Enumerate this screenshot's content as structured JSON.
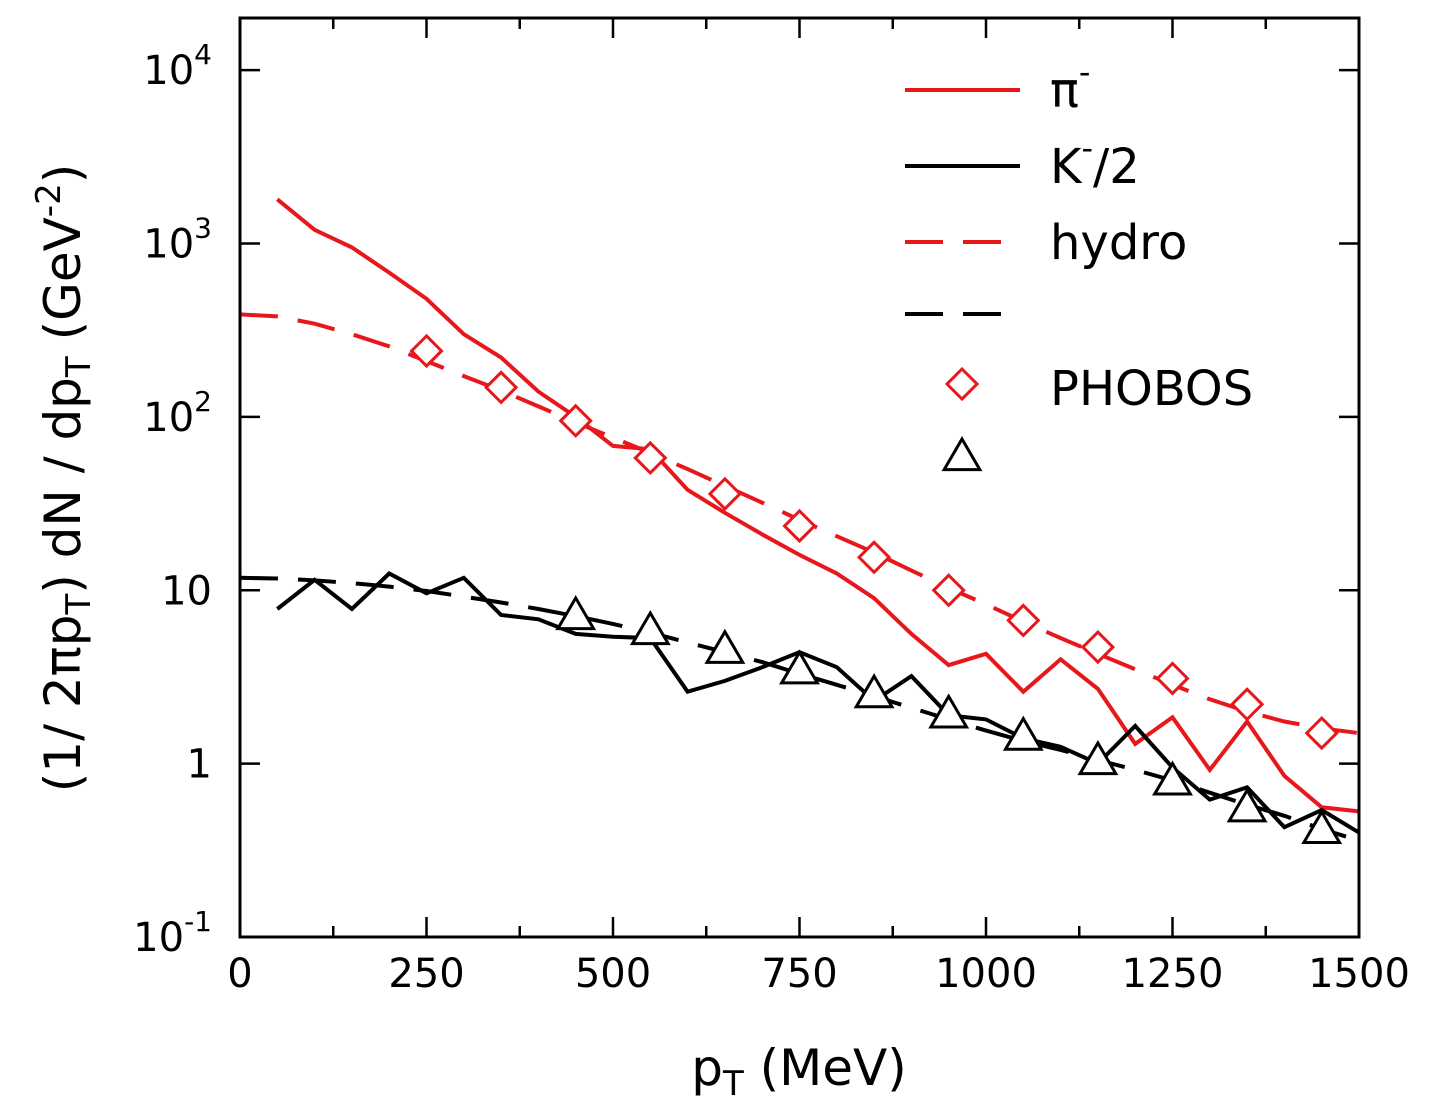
{
  "chart_data": {
    "type": "line",
    "title": "",
    "xlabel": "p_T (MeV)",
    "xlabel_main": "p",
    "xlabel_sub": "T",
    "xlabel_rest": " (MeV)",
    "ylabel": "(1/ 2πp_T) dN / dp_T (GeV^-2)",
    "ylabel_parts": {
      "p1": "(1/ 2πp",
      "s1": "T",
      "p2": ") dN / dp",
      "s2": "T",
      "p3": " (GeV",
      "sup": "-2",
      "p4": ")"
    },
    "xlim": [
      0,
      1500
    ],
    "ylim": [
      0.1,
      20000
    ],
    "yscale": "log",
    "xticks": [
      {
        "value": 0,
        "label": "0"
      },
      {
        "value": 250,
        "label": "250"
      },
      {
        "value": 500,
        "label": "500"
      },
      {
        "value": 750,
        "label": "750"
      },
      {
        "value": 1000,
        "label": "1000"
      },
      {
        "value": 1250,
        "label": "1250"
      },
      {
        "value": 1500,
        "label": "1500"
      }
    ],
    "xminor": [
      125,
      375,
      625,
      875,
      1125,
      1375
    ],
    "yticks": [
      {
        "value": 0.1,
        "base": "10",
        "exp": "-1"
      },
      {
        "value": 1,
        "base": "1",
        "exp": ""
      },
      {
        "value": 10,
        "base": "10",
        "exp": ""
      },
      {
        "value": 100,
        "base": "10",
        "exp": "2"
      },
      {
        "value": 1000,
        "base": "10",
        "exp": "3"
      },
      {
        "value": 10000,
        "base": "10",
        "exp": "4"
      }
    ],
    "legend": {
      "position": "top-right",
      "entries": [
        {
          "series": "pi-model",
          "main": "π",
          "sup": "-",
          "rest": ""
        },
        {
          "series": "k-model",
          "main": "K",
          "sup": "-",
          "rest": "/2"
        },
        {
          "series": "pi-hydro",
          "main": "hydro",
          "sup": "",
          "rest": ""
        },
        {
          "series": "k-hydro",
          "main": "",
          "sup": "",
          "rest": ""
        },
        {
          "series": "pi-phobos",
          "main": "PHOBOS",
          "sup": "",
          "rest": ""
        },
        {
          "series": "k-phobos",
          "main": "",
          "sup": "",
          "rest": ""
        }
      ]
    },
    "series": [
      {
        "id": "pi-model",
        "name": "π-",
        "style": "solid",
        "marker": "none",
        "color": "#e8171b",
        "x": [
          50,
          100,
          150,
          200,
          250,
          300,
          350,
          400,
          450,
          500,
          550,
          600,
          650,
          700,
          750,
          800,
          850,
          900,
          950,
          1000,
          1050,
          1100,
          1150,
          1200,
          1250,
          1300,
          1350,
          1400,
          1450,
          1500
        ],
        "y": [
          1800,
          1200,
          950,
          680,
          480,
          300,
          220,
          140,
          100,
          68,
          65,
          38,
          28,
          21,
          16,
          12.5,
          9,
          5.6,
          3.7,
          4.3,
          2.6,
          4.0,
          2.7,
          1.3,
          1.85,
          0.92,
          1.75,
          0.85,
          0.56,
          0.53
        ]
      },
      {
        "id": "k-model",
        "name": "K-/2",
        "style": "solid",
        "marker": "none",
        "color": "#000000",
        "x": [
          50,
          100,
          150,
          200,
          250,
          300,
          350,
          400,
          450,
          500,
          550,
          600,
          650,
          700,
          750,
          800,
          850,
          900,
          950,
          1000,
          1050,
          1100,
          1150,
          1200,
          1250,
          1300,
          1350,
          1400,
          1450,
          1500
        ],
        "y": [
          7.8,
          11.5,
          7.8,
          12.5,
          9.6,
          11.8,
          7.2,
          6.8,
          5.6,
          5.4,
          5.3,
          2.6,
          3.0,
          3.6,
          4.4,
          3.6,
          2.3,
          3.2,
          1.9,
          1.8,
          1.4,
          1.25,
          1.0,
          1.65,
          0.95,
          0.62,
          0.73,
          0.43,
          0.54,
          0.4
        ]
      },
      {
        "id": "pi-hydro",
        "name": "hydro",
        "style": "dashed",
        "marker": "none",
        "color": "#e8171b",
        "x": [
          0,
          50,
          100,
          150,
          200,
          250,
          300,
          350,
          400,
          450,
          500,
          550,
          600,
          650,
          700,
          750,
          800,
          850,
          900,
          950,
          1000,
          1050,
          1100,
          1150,
          1200,
          1250,
          1300,
          1350,
          1400,
          1450,
          1500
        ],
        "y": [
          390,
          380,
          345,
          300,
          255,
          210,
          172,
          142,
          115,
          93,
          76,
          62,
          50,
          40,
          32,
          25.5,
          20.5,
          16.5,
          13,
          10.3,
          8.3,
          6.6,
          5.3,
          4.3,
          3.5,
          2.85,
          2.35,
          2.0,
          1.75,
          1.6,
          1.5
        ]
      },
      {
        "id": "k-hydro",
        "name": "",
        "style": "dashed",
        "marker": "none",
        "color": "#000000",
        "x": [
          0,
          50,
          100,
          150,
          200,
          250,
          300,
          350,
          400,
          450,
          500,
          550,
          600,
          650,
          700,
          750,
          800,
          850,
          900,
          950,
          1000,
          1050,
          1100,
          1150,
          1200,
          1250,
          1300,
          1350,
          1400,
          1450,
          1500
        ],
        "y": [
          11.8,
          11.7,
          11.4,
          11.0,
          10.5,
          9.9,
          9.2,
          8.5,
          7.8,
          7.1,
          6.4,
          5.7,
          5.0,
          4.4,
          3.85,
          3.3,
          2.85,
          2.45,
          2.1,
          1.8,
          1.55,
          1.35,
          1.2,
          1.05,
          0.92,
          0.8,
          0.68,
          0.58,
          0.5,
          0.42,
          0.36
        ]
      },
      {
        "id": "pi-phobos",
        "name": "PHOBOS",
        "style": "none",
        "marker": "diamond",
        "color": "#e8171b",
        "x": [
          250,
          350,
          450,
          550,
          650,
          750,
          850,
          950,
          1050,
          1150,
          1250,
          1350,
          1450
        ],
        "y": [
          240,
          148,
          95,
          58,
          36,
          23.5,
          15.5,
          10,
          6.7,
          4.7,
          3.1,
          2.2,
          1.5
        ]
      },
      {
        "id": "k-phobos",
        "name": "",
        "style": "none",
        "marker": "triangle",
        "color": "#000000",
        "x": [
          450,
          550,
          650,
          750,
          850,
          950,
          1050,
          1150,
          1250,
          1350,
          1450
        ],
        "y": [
          7.2,
          5.9,
          4.6,
          3.5,
          2.55,
          1.95,
          1.45,
          1.05,
          0.8,
          0.56,
          0.42
        ]
      }
    ]
  }
}
